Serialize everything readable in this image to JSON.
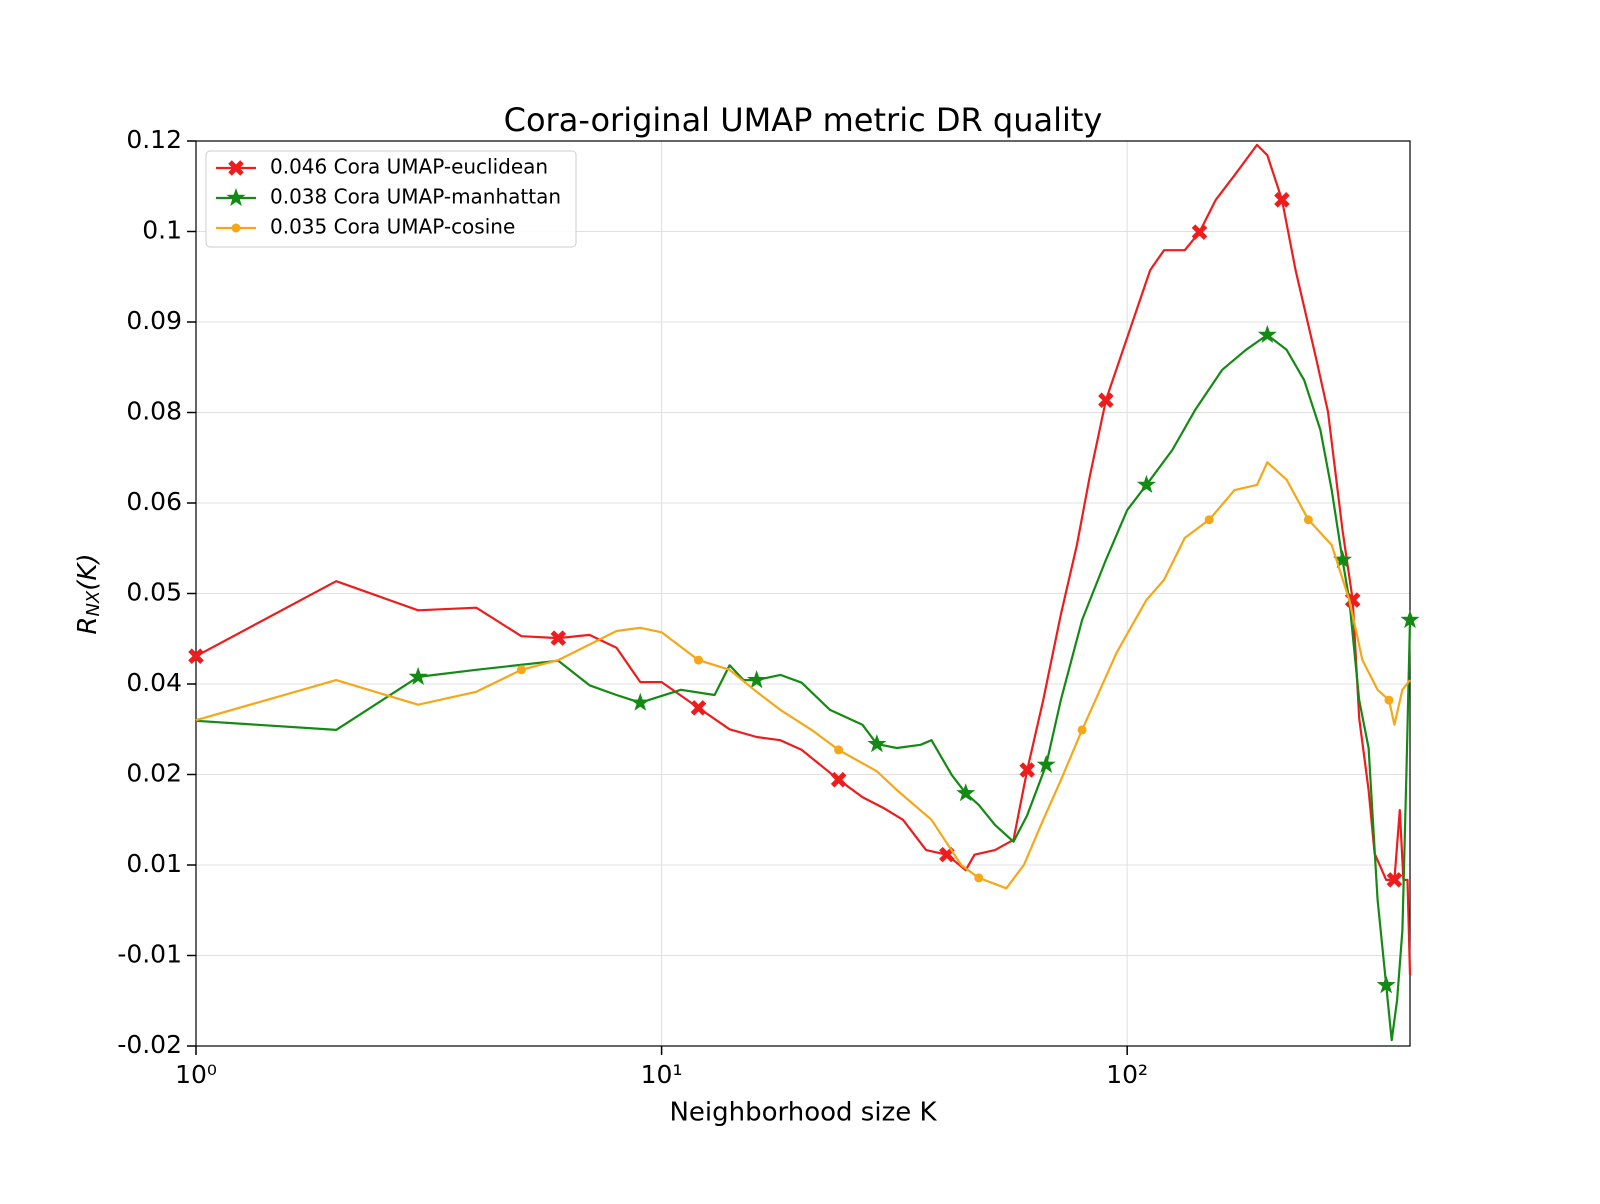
{
  "chart_data": {
    "type": "line",
    "title": "Cora-original UMAP metric DR quality",
    "x_label": "Neighborhood size K",
    "y_label": {
      "main": "R",
      "sub": "NX",
      "tail": "(K)"
    },
    "x_scale": "log",
    "grid": true,
    "legend_position": "upper left",
    "xlim": [
      1,
      405
    ],
    "xticks": [
      {
        "value": 1,
        "label": "10⁰"
      },
      {
        "value": 10,
        "label": "10¹"
      },
      {
        "value": 100,
        "label": "10²"
      }
    ],
    "ylim": [
      -0.02,
      0.12
    ],
    "yticks": [
      {
        "value": 0.12,
        "label": "0.12"
      },
      {
        "value": 0.106,
        "label": "0.1"
      },
      {
        "value": 0.092,
        "label": "0.09"
      },
      {
        "value": 0.078,
        "label": "0.08"
      },
      {
        "value": 0.064,
        "label": "0.06"
      },
      {
        "value": 0.05,
        "label": "0.05"
      },
      {
        "value": 0.036,
        "label": "0.04"
      },
      {
        "value": 0.022,
        "label": "0.02"
      },
      {
        "value": 0.008,
        "label": "0.01"
      },
      {
        "value": -0.006,
        "label": "-0.01"
      },
      {
        "value": -0.02,
        "label": "-0.02"
      }
    ],
    "series": [
      {
        "name": "0.046 Cora UMAP-euclidean",
        "color": "#ee1c1c",
        "marker": "x",
        "x": [
          1,
          2,
          3,
          4,
          5,
          6,
          7,
          8,
          9,
          10,
          12,
          14,
          16,
          18,
          20,
          24,
          27,
          30,
          33,
          37,
          41,
          45,
          47,
          52,
          57,
          61,
          66,
          72,
          78,
          83,
          90,
          101,
          112,
          120,
          133,
          143,
          155,
          170,
          190,
          200,
          215,
          230,
          255,
          270,
          290,
          305,
          315,
          330,
          340,
          360,
          375,
          385,
          392,
          400,
          405
        ],
        "values": [
          0.0403,
          0.0519,
          0.0474,
          0.0478,
          0.0434,
          0.0431,
          0.0436,
          0.0416,
          0.0363,
          0.0363,
          0.0323,
          0.029,
          0.0278,
          0.0273,
          0.0258,
          0.0212,
          0.0185,
          0.0168,
          0.015,
          0.0103,
          0.0096,
          0.0072,
          0.0096,
          0.0103,
          0.0119,
          0.0227,
          0.0335,
          0.0467,
          0.0575,
          0.0679,
          0.0799,
          0.0905,
          0.1,
          0.1031,
          0.1031,
          0.1059,
          0.1109,
          0.1147,
          0.1194,
          0.1178,
          0.1109,
          0.1,
          0.0861,
          0.0781,
          0.0598,
          0.049,
          0.0307,
          0.0196,
          0.0098,
          0.0057,
          0.0057,
          0.0165,
          0.0057,
          0.0057,
          -0.009
        ]
      },
      {
        "name": "0.038 Cora UMAP-manhattan",
        "color": "#138a13",
        "marker": "star",
        "x": [
          1,
          2,
          3,
          4,
          6,
          7,
          8,
          9,
          11,
          13,
          14,
          15,
          16,
          18,
          20,
          23,
          27,
          29,
          32,
          36,
          38,
          42,
          45,
          48,
          52,
          57,
          61,
          67,
          72,
          80,
          90,
          100,
          110,
          125,
          140,
          160,
          180,
          200,
          220,
          240,
          260,
          275,
          290,
          300,
          315,
          330,
          345,
          360,
          370,
          380,
          390,
          398,
          405
        ],
        "values": [
          0.0303,
          0.0289,
          0.0371,
          0.0382,
          0.0396,
          0.0358,
          0.0343,
          0.0331,
          0.0351,
          0.0343,
          0.0389,
          0.0366,
          0.0366,
          0.0374,
          0.0362,
          0.032,
          0.0297,
          0.0267,
          0.0261,
          0.0266,
          0.0273,
          0.0219,
          0.0191,
          0.0173,
          0.0142,
          0.0116,
          0.0157,
          0.0235,
          0.0335,
          0.0459,
          0.0552,
          0.0629,
          0.0668,
          0.0722,
          0.0784,
          0.0846,
          0.0877,
          0.09,
          0.0877,
          0.083,
          0.0753,
          0.066,
          0.0552,
          0.049,
          0.0335,
          0.0261,
          0.0026,
          -0.0106,
          -0.0191,
          -0.0129,
          -0.0021,
          0.0227,
          0.0459
        ]
      },
      {
        "name": "0.035 Cora UMAP-cosine",
        "color": "#f5a718",
        "marker": "circle",
        "x": [
          1,
          2,
          3,
          4,
          5,
          6,
          8,
          9,
          10,
          12,
          14,
          16,
          18,
          21,
          24,
          29,
          32,
          38,
          44,
          48,
          55,
          60,
          66,
          72,
          80,
          95,
          110,
          120,
          133,
          150,
          170,
          190,
          200,
          220,
          245,
          275,
          300,
          320,
          345,
          365,
          375,
          390,
          405
        ],
        "values": [
          0.0304,
          0.0366,
          0.0328,
          0.0348,
          0.0382,
          0.0397,
          0.0442,
          0.0447,
          0.044,
          0.0397,
          0.0382,
          0.0348,
          0.032,
          0.0289,
          0.0258,
          0.0225,
          0.0196,
          0.015,
          0.008,
          0.006,
          0.0044,
          0.008,
          0.015,
          0.0211,
          0.0289,
          0.0409,
          0.049,
          0.0521,
          0.0586,
          0.0614,
          0.066,
          0.0668,
          0.0703,
          0.0676,
          0.0614,
          0.0575,
          0.049,
          0.0397,
          0.0351,
          0.0335,
          0.0297,
          0.0351,
          0.0366
        ]
      }
    ]
  }
}
